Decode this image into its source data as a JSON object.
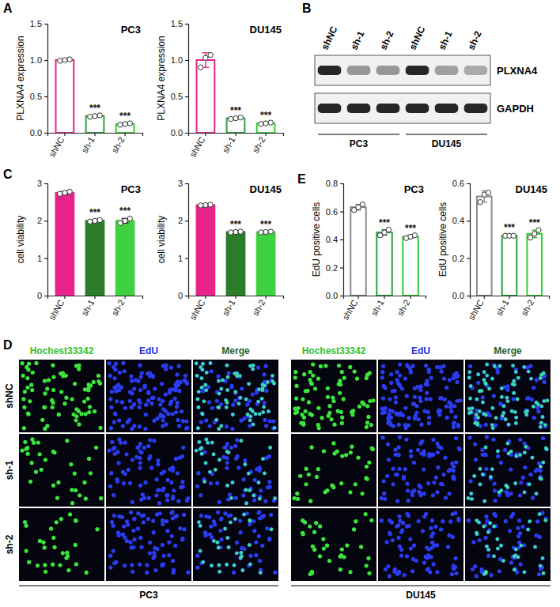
{
  "panel_labels": [
    "A",
    "B",
    "C",
    "D",
    "E"
  ],
  "chart_data": [
    {
      "type": "bar",
      "title": "PC3",
      "y_label": "PLXNA4 expression",
      "categories": [
        "shNC",
        "sh-1",
        "sh-2"
      ],
      "values": [
        1.0,
        0.23,
        0.12
      ],
      "errors": [
        0.01,
        0.01,
        0.01
      ],
      "replicates": [
        [
          0.99,
          1.0,
          1.01
        ],
        [
          0.22,
          0.23,
          0.24
        ],
        [
          0.11,
          0.12,
          0.13
        ]
      ],
      "significance": [
        null,
        "***",
        "***"
      ],
      "colors": [
        "#e8238a",
        "#2e9e3e",
        "#33cc33"
      ],
      "ylim": [
        0,
        1.5
      ],
      "yticks": [
        {
          "value": 0,
          "label": "0.0"
        },
        0.5,
        {
          "value": 1,
          "label": "1.0"
        },
        1.5
      ]
    },
    {
      "type": "bar",
      "title": "DU145",
      "y_label": "PLXNA4 expression",
      "categories": [
        "shNC",
        "sh-1",
        "sh-2"
      ],
      "values": [
        1.0,
        0.2,
        0.13
      ],
      "errors": [
        0.1,
        0.01,
        0.01
      ],
      "replicates": [
        [
          0.9,
          1.03,
          1.07
        ],
        [
          0.19,
          0.2,
          0.21
        ],
        [
          0.12,
          0.13,
          0.14
        ]
      ],
      "significance": [
        null,
        "***",
        "***"
      ],
      "colors": [
        "#e8238a",
        "#2e9e3e",
        "#33cc33"
      ],
      "ylim": [
        0,
        1.5
      ],
      "yticks": [
        {
          "value": 0,
          "label": "0.0"
        },
        0.5,
        {
          "value": 1,
          "label": "1.0"
        },
        1.5
      ]
    },
    {
      "type": "bar",
      "title": "PC3",
      "y_label": "cell viability",
      "categories": [
        "shNC",
        "sh-1",
        "sh-2"
      ],
      "values": [
        2.75,
        2.0,
        2.0
      ],
      "errors": [
        0.03,
        0.02,
        0.06
      ],
      "replicates": [
        [
          2.72,
          2.75,
          2.78
        ],
        [
          1.98,
          2.0,
          2.02
        ],
        [
          1.94,
          2.0,
          2.06
        ]
      ],
      "significance": [
        null,
        "***",
        "***"
      ],
      "colors": [
        "#e8238a",
        "#2b7d2b",
        "#3fd13f"
      ],
      "ylim": [
        0,
        3
      ],
      "yticks": [
        0,
        1,
        2,
        3
      ]
    },
    {
      "type": "bar",
      "title": "DU145",
      "y_label": "cell viability",
      "categories": [
        "shNC",
        "sh-1",
        "sh-2"
      ],
      "values": [
        2.42,
        1.7,
        1.7
      ],
      "errors": [
        0.01,
        0.01,
        0.01
      ],
      "replicates": [
        [
          2.41,
          2.42,
          2.43
        ],
        [
          1.69,
          1.7,
          1.71
        ],
        [
          1.69,
          1.7,
          1.71
        ]
      ],
      "significance": [
        null,
        "***",
        "***"
      ],
      "colors": [
        "#e8238a",
        "#2b7d2b",
        "#3fd13f"
      ],
      "ylim": [
        0,
        3
      ],
      "yticks": [
        0,
        1,
        2,
        3
      ]
    },
    {
      "type": "bar",
      "title": "PC3",
      "y_label": "EdU positive cells",
      "categories": [
        "shNC",
        "sh-1",
        "sh-2"
      ],
      "values": [
        0.63,
        0.45,
        0.42
      ],
      "errors": [
        0.02,
        0.02,
        0.01
      ],
      "replicates": [
        [
          0.61,
          0.63,
          0.65
        ],
        [
          0.43,
          0.45,
          0.47
        ],
        [
          0.41,
          0.42,
          0.43
        ]
      ],
      "significance": [
        null,
        "***",
        "***"
      ],
      "colors": [
        "#8a8a8a",
        "#2e9e3e",
        "#33cc33"
      ],
      "ylim": [
        0,
        0.8
      ],
      "yticks": [
        {
          "value": 0,
          "label": "0.0"
        },
        0.2,
        0.4,
        0.6,
        0.8
      ]
    },
    {
      "type": "bar",
      "title": "DU145",
      "y_label": "EdU positive cells",
      "categories": [
        "shNC",
        "sh-1",
        "sh-2"
      ],
      "values": [
        0.53,
        0.32,
        0.33
      ],
      "errors": [
        0.03,
        0.005,
        0.02
      ],
      "replicates": [
        [
          0.5,
          0.54,
          0.55
        ],
        [
          0.32,
          0.32,
          0.32
        ],
        [
          0.31,
          0.33,
          0.35
        ]
      ],
      "significance": [
        null,
        "***",
        "***"
      ],
      "colors": [
        "#8a8a8a",
        "#2e9e3e",
        "#33cc33"
      ],
      "ylim": [
        0,
        0.6
      ],
      "yticks": [
        {
          "value": 0,
          "label": "0.0"
        },
        0.2,
        0.4,
        0.6
      ]
    }
  ],
  "blot": {
    "lanes": [
      "shNC",
      "sh-1",
      "sh-2",
      "shNC",
      "sh-1",
      "sh-2"
    ],
    "groups": [
      "PC3",
      "DU145"
    ],
    "bands": [
      {
        "name": "PLXNA4",
        "intensity": [
          1.0,
          0.45,
          0.45,
          1.0,
          0.4,
          0.35
        ]
      },
      {
        "name": "GAPDH",
        "intensity": [
          1.0,
          1.0,
          1.0,
          1.0,
          1.0,
          1.0
        ]
      }
    ]
  },
  "images": {
    "columns": [
      "Hochest33342",
      "EdU",
      "Merge"
    ],
    "rows": [
      "shNC",
      "sh-1",
      "sh-2"
    ],
    "groups": [
      "PC3",
      "DU145"
    ]
  }
}
